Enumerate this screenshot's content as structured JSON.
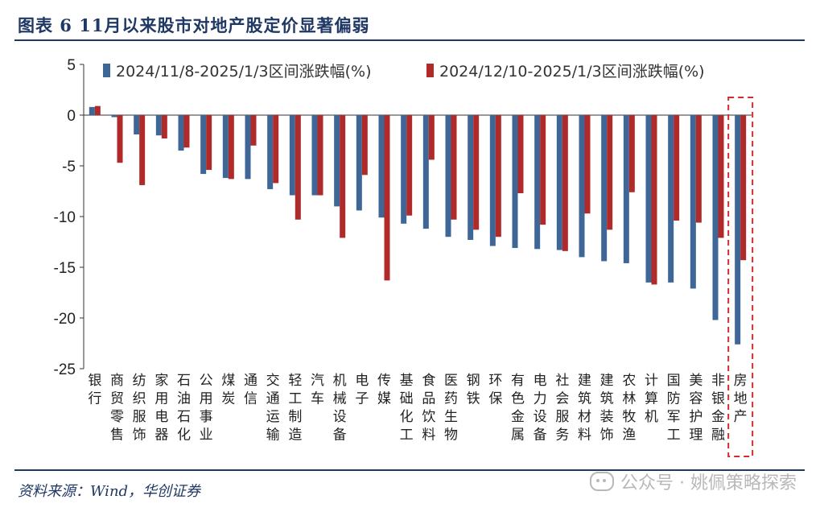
{
  "figure": {
    "title": "图表 6   11月以来股市对地产股定价显著偏弱",
    "source": "资料来源：Wind，华创证券",
    "watermark": "公众号 · 姚佩策略探索"
  },
  "colors": {
    "series1": "#3e6797",
    "series2": "#b02a2a",
    "rule": "#1f3864",
    "highlight_box": "#d22b2b"
  },
  "chart_data": {
    "type": "bar",
    "ylim": [
      -25,
      5
    ],
    "yticks": [
      5,
      0,
      -5,
      -10,
      -15,
      -20,
      -25
    ],
    "grid": false,
    "legend_position": "top",
    "highlight_category": "房地产",
    "categories": [
      "银行",
      "商贸零售",
      "纺织服饰",
      "家用电器",
      "石油石化",
      "公用事业",
      "煤炭",
      "通信",
      "交通运输",
      "轻工制造",
      "汽车",
      "机械设备",
      "电子",
      "传媒",
      "基础化工",
      "食品饮料",
      "医药生物",
      "钢铁",
      "环保",
      "有色金属",
      "电力设备",
      "社会服务",
      "建筑材料",
      "建筑装饰",
      "农林牧渔",
      "计算机",
      "国防军工",
      "美容护理",
      "非银金融",
      "房地产"
    ],
    "series": [
      {
        "name": "2024/11/8-2025/1/3区间涨跌幅(%)",
        "values": [
          0.8,
          -0.2,
          -1.9,
          -2.0,
          -3.5,
          -5.8,
          -6.2,
          -6.3,
          -7.3,
          -7.9,
          -7.9,
          -9.0,
          -9.4,
          -10.1,
          -10.7,
          -11.2,
          -12.0,
          -12.3,
          -12.9,
          -13.1,
          -13.2,
          -13.3,
          -14.0,
          -14.4,
          -14.6,
          -16.5,
          -16.5,
          -17.1,
          -20.2,
          -22.6
        ]
      },
      {
        "name": "2024/12/10-2025/1/3区间涨跌幅(%)",
        "values": [
          0.9,
          -4.7,
          -6.9,
          -2.3,
          -3.2,
          -5.4,
          -6.3,
          -3.0,
          -6.7,
          -10.3,
          -7.9,
          -12.1,
          -5.9,
          -16.3,
          -9.9,
          -4.4,
          -10.3,
          -11.3,
          -12.0,
          -7.7,
          -10.8,
          -13.4,
          -9.7,
          -11.3,
          -7.6,
          -16.7,
          -10.4,
          -10.6,
          -12.1,
          -14.3
        ]
      }
    ]
  }
}
